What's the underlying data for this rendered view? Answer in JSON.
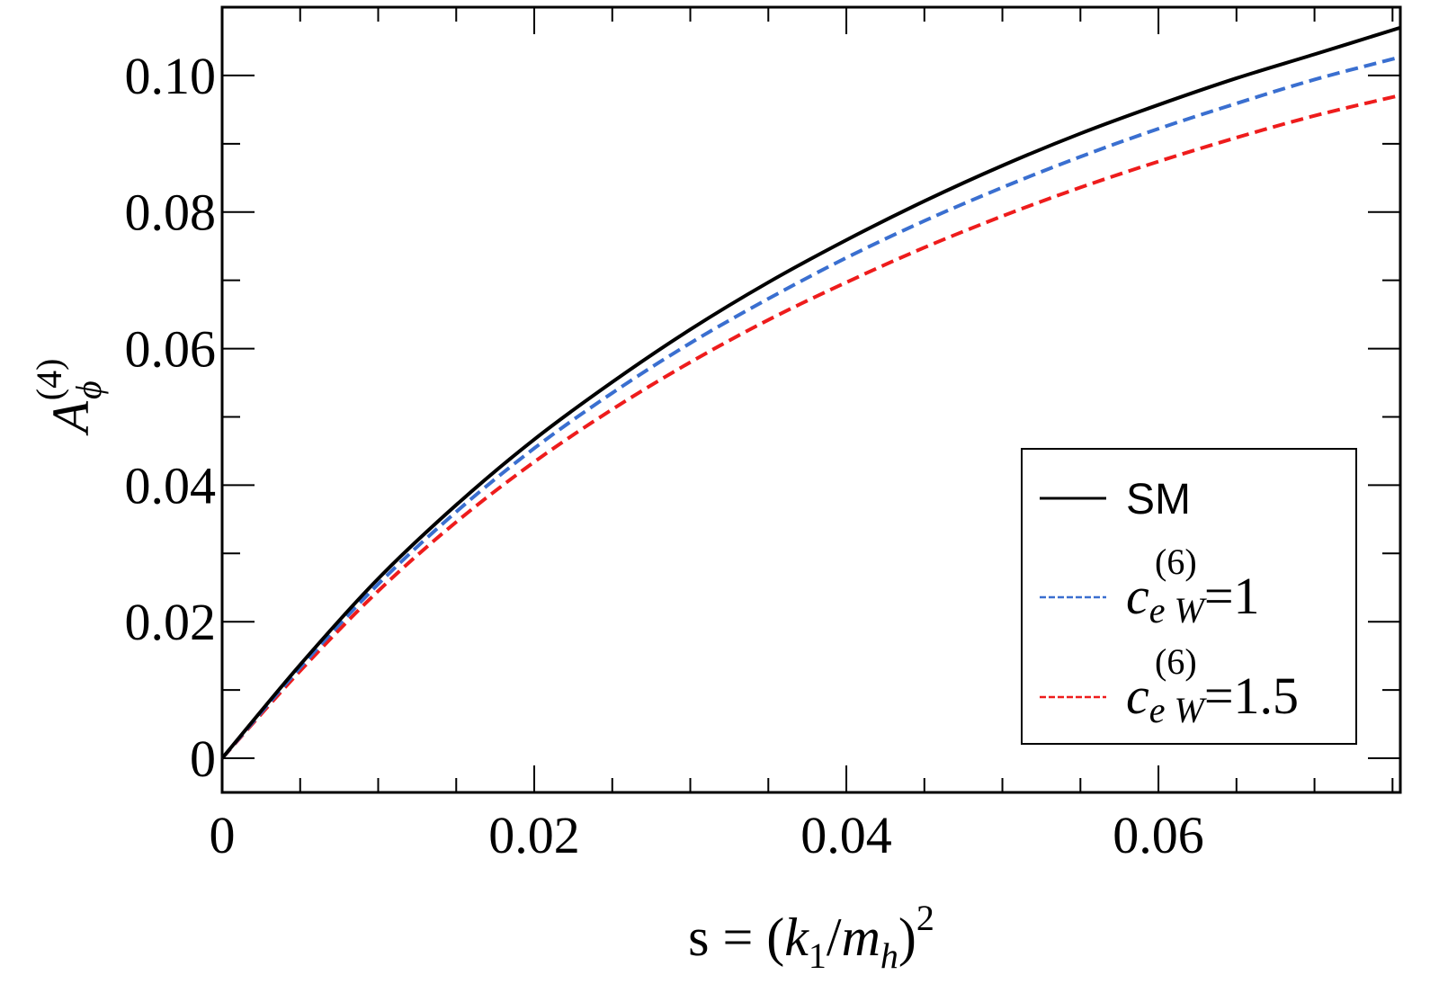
{
  "chart_data": {
    "type": "line",
    "xlabel": {
      "prefix": "s = (",
      "k": "k",
      "k_sub": "1",
      "slash": "/",
      "m": "m",
      "m_sub": "h",
      "close": ")",
      "power": "2"
    },
    "ylabel": {
      "base": "A",
      "sub": "ϕ",
      "sup": "(4)"
    },
    "xlim": [
      0,
      0.0755
    ],
    "ylim": [
      -0.005,
      0.11
    ],
    "x_ticks": [
      {
        "value": 0,
        "label": "0"
      },
      {
        "value": 0.02,
        "label": "0.02"
      },
      {
        "value": 0.04,
        "label": "0.04"
      },
      {
        "value": 0.06,
        "label": "0.06"
      }
    ],
    "y_ticks": [
      {
        "value": 0,
        "label": "0"
      },
      {
        "value": 0.02,
        "label": "0.02"
      },
      {
        "value": 0.04,
        "label": "0.04"
      },
      {
        "value": 0.06,
        "label": "0.06"
      },
      {
        "value": 0.08,
        "label": "0.08"
      },
      {
        "value": 0.1,
        "label": "0.10"
      }
    ],
    "x_minor_step": 0.005,
    "y_minor_step": 0.01,
    "grid": false,
    "legend_position": "bottom-right",
    "x": [
      0,
      0.005,
      0.01,
      0.015,
      0.02,
      0.025,
      0.03,
      0.035,
      0.04,
      0.045,
      0.05,
      0.055,
      0.06,
      0.065,
      0.07,
      0.0755
    ],
    "series": [
      {
        "name": "SM",
        "legend_kind": "plain",
        "color": "#000000",
        "dash": "solid",
        "values": [
          0,
          0.0137,
          0.0263,
          0.0371,
          0.0467,
          0.0551,
          0.0628,
          0.0697,
          0.0759,
          0.0816,
          0.0868,
          0.0915,
          0.0957,
          0.0996,
          0.1031,
          0.107
        ]
      },
      {
        "name": "c_eW^(6)=1",
        "legend_kind": "coef",
        "legend": {
          "c": "c",
          "sup": "(6)",
          "sub": "e W",
          "value": "=1"
        },
        "color": "#3a6fd0",
        "dash": "dashed",
        "values": [
          0,
          0.0133,
          0.0255,
          0.0361,
          0.0454,
          0.0535,
          0.0608,
          0.0673,
          0.0733,
          0.0787,
          0.0836,
          0.0881,
          0.0922,
          0.0959,
          0.0994,
          0.1027
        ]
      },
      {
        "name": "c_eW^(6)=1.5",
        "legend_kind": "coef",
        "legend": {
          "c": "c",
          "sup": "(6)",
          "sub": "e W",
          "value": "=1.5"
        },
        "color": "#ee1c1c",
        "dash": "dashed",
        "values": [
          0,
          0.0128,
          0.0245,
          0.0346,
          0.0434,
          0.0511,
          0.058,
          0.0642,
          0.0697,
          0.0748,
          0.0794,
          0.0836,
          0.0874,
          0.0909,
          0.0941,
          0.0971
        ]
      }
    ]
  }
}
